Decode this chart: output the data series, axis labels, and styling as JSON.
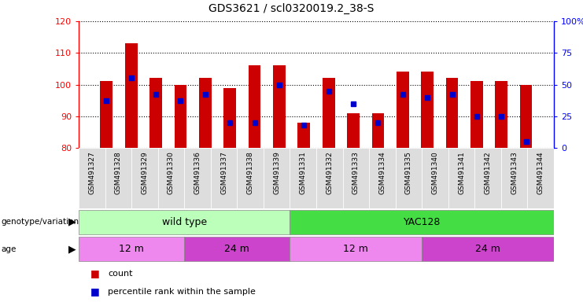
{
  "title": "GDS3621 / scl0320019.2_38-S",
  "samples": [
    "GSM491327",
    "GSM491328",
    "GSM491329",
    "GSM491330",
    "GSM491336",
    "GSM491337",
    "GSM491338",
    "GSM491339",
    "GSM491331",
    "GSM491332",
    "GSM491333",
    "GSM491334",
    "GSM491335",
    "GSM491340",
    "GSM491341",
    "GSM491342",
    "GSM491343",
    "GSM491344"
  ],
  "counts": [
    101,
    113,
    102,
    100,
    102,
    99,
    106,
    106,
    88,
    102,
    91,
    91,
    104,
    104,
    102,
    101,
    101,
    100
  ],
  "percentiles": [
    37,
    55,
    42,
    37,
    42,
    20,
    20,
    50,
    18,
    45,
    35,
    20,
    42,
    40,
    42,
    25,
    25,
    5
  ],
  "ylim_left": [
    80,
    120
  ],
  "ylim_right": [
    0,
    100
  ],
  "yticks_left": [
    80,
    90,
    100,
    110,
    120
  ],
  "yticks_right": [
    0,
    25,
    50,
    75,
    100
  ],
  "bar_color": "#cc0000",
  "marker_color": "#0000cc",
  "bar_bottom": 80,
  "genotype_groups": [
    {
      "label": "wild type",
      "start": 0,
      "end": 8,
      "color": "#bbffbb"
    },
    {
      "label": "YAC128",
      "start": 8,
      "end": 18,
      "color": "#44dd44"
    }
  ],
  "age_groups": [
    {
      "label": "12 m",
      "start": 0,
      "end": 4,
      "color": "#ee88ee"
    },
    {
      "label": "24 m",
      "start": 4,
      "end": 8,
      "color": "#cc44cc"
    },
    {
      "label": "12 m",
      "start": 8,
      "end": 13,
      "color": "#ee88ee"
    },
    {
      "label": "24 m",
      "start": 13,
      "end": 18,
      "color": "#cc44cc"
    }
  ],
  "legend_count_color": "#cc0000",
  "legend_pct_color": "#0000cc",
  "grid_color": "#000000",
  "cell_bg": "#dddddd"
}
